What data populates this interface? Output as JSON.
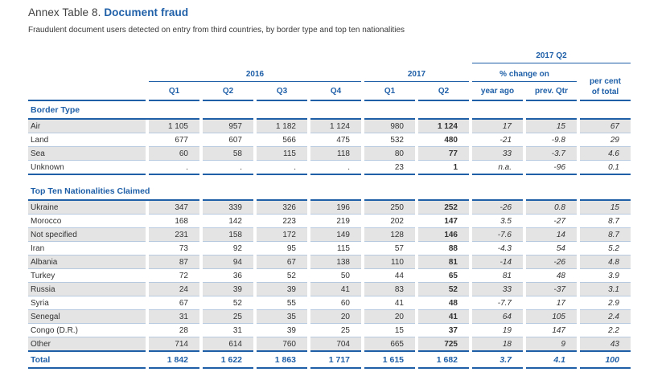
{
  "title": {
    "prefix": "Annex Table 8.",
    "highlight": "Document fraud"
  },
  "subtitle": "Fraudulent document users detected on entry from third countries, by border type and top ten nationalities",
  "colors": {
    "accent_blue": "#1e5fa8",
    "row_stripe": "#e4e4e4",
    "separator": "#b6c9de",
    "text": "#333333"
  },
  "table": {
    "group_headers": {
      "top_right": "2017 Q2",
      "year_2016": "2016",
      "year_2017": "2017",
      "pct_change": "% change on",
      "pct_total_line1": "per cent",
      "pct_total_line2": "of total"
    },
    "quarter_headers": [
      "Q1",
      "Q2",
      "Q3",
      "Q4",
      "Q1",
      "Q2"
    ],
    "change_headers": [
      "year ago",
      "prev. Qtr"
    ],
    "sections": [
      {
        "label": "Border Type",
        "rows": [
          {
            "label": "Air",
            "values": [
              "1 105",
              "957",
              "1 182",
              "1 124",
              "980",
              "1 124",
              "17",
              "15",
              "67"
            ]
          },
          {
            "label": "Land",
            "values": [
              "677",
              "607",
              "566",
              "475",
              "532",
              "480",
              "-21",
              "-9.8",
              "29"
            ]
          },
          {
            "label": "Sea",
            "values": [
              "60",
              "58",
              "115",
              "118",
              "80",
              "77",
              "33",
              "-3.7",
              "4.6"
            ]
          },
          {
            "label": "Unknown",
            "values": [
              ".",
              ".",
              ".",
              ".",
              "23",
              "1",
              "n.a.",
              "-96",
              "0.1"
            ]
          }
        ]
      },
      {
        "label": "Top Ten Nationalities Claimed",
        "rows": [
          {
            "label": "Ukraine",
            "values": [
              "347",
              "339",
              "326",
              "196",
              "250",
              "252",
              "-26",
              "0.8",
              "15"
            ]
          },
          {
            "label": "Morocco",
            "values": [
              "168",
              "142",
              "223",
              "219",
              "202",
              "147",
              "3.5",
              "-27",
              "8.7"
            ]
          },
          {
            "label": "Not specified",
            "values": [
              "231",
              "158",
              "172",
              "149",
              "128",
              "146",
              "-7.6",
              "14",
              "8.7"
            ]
          },
          {
            "label": "Iran",
            "values": [
              "73",
              "92",
              "95",
              "115",
              "57",
              "88",
              "-4.3",
              "54",
              "5.2"
            ]
          },
          {
            "label": "Albania",
            "values": [
              "87",
              "94",
              "67",
              "138",
              "110",
              "81",
              "-14",
              "-26",
              "4.8"
            ]
          },
          {
            "label": "Turkey",
            "values": [
              "72",
              "36",
              "52",
              "50",
              "44",
              "65",
              "81",
              "48",
              "3.9"
            ]
          },
          {
            "label": "Russia",
            "values": [
              "24",
              "39",
              "39",
              "41",
              "83",
              "52",
              "33",
              "-37",
              "3.1"
            ]
          },
          {
            "label": "Syria",
            "values": [
              "67",
              "52",
              "55",
              "60",
              "41",
              "48",
              "-7.7",
              "17",
              "2.9"
            ]
          },
          {
            "label": "Senegal",
            "values": [
              "31",
              "25",
              "35",
              "20",
              "20",
              "41",
              "64",
              "105",
              "2.4"
            ]
          },
          {
            "label": "Congo (D.R.)",
            "values": [
              "28",
              "31",
              "39",
              "25",
              "15",
              "37",
              "19",
              "147",
              "2.2"
            ]
          },
          {
            "label": "Other",
            "values": [
              "714",
              "614",
              "760",
              "704",
              "665",
              "725",
              "18",
              "9",
              "43"
            ]
          }
        ]
      }
    ],
    "total": {
      "label": "Total",
      "values": [
        "1 842",
        "1 622",
        "1 863",
        "1 717",
        "1 615",
        "1 682",
        "3.7",
        "4.1",
        "100"
      ]
    }
  }
}
